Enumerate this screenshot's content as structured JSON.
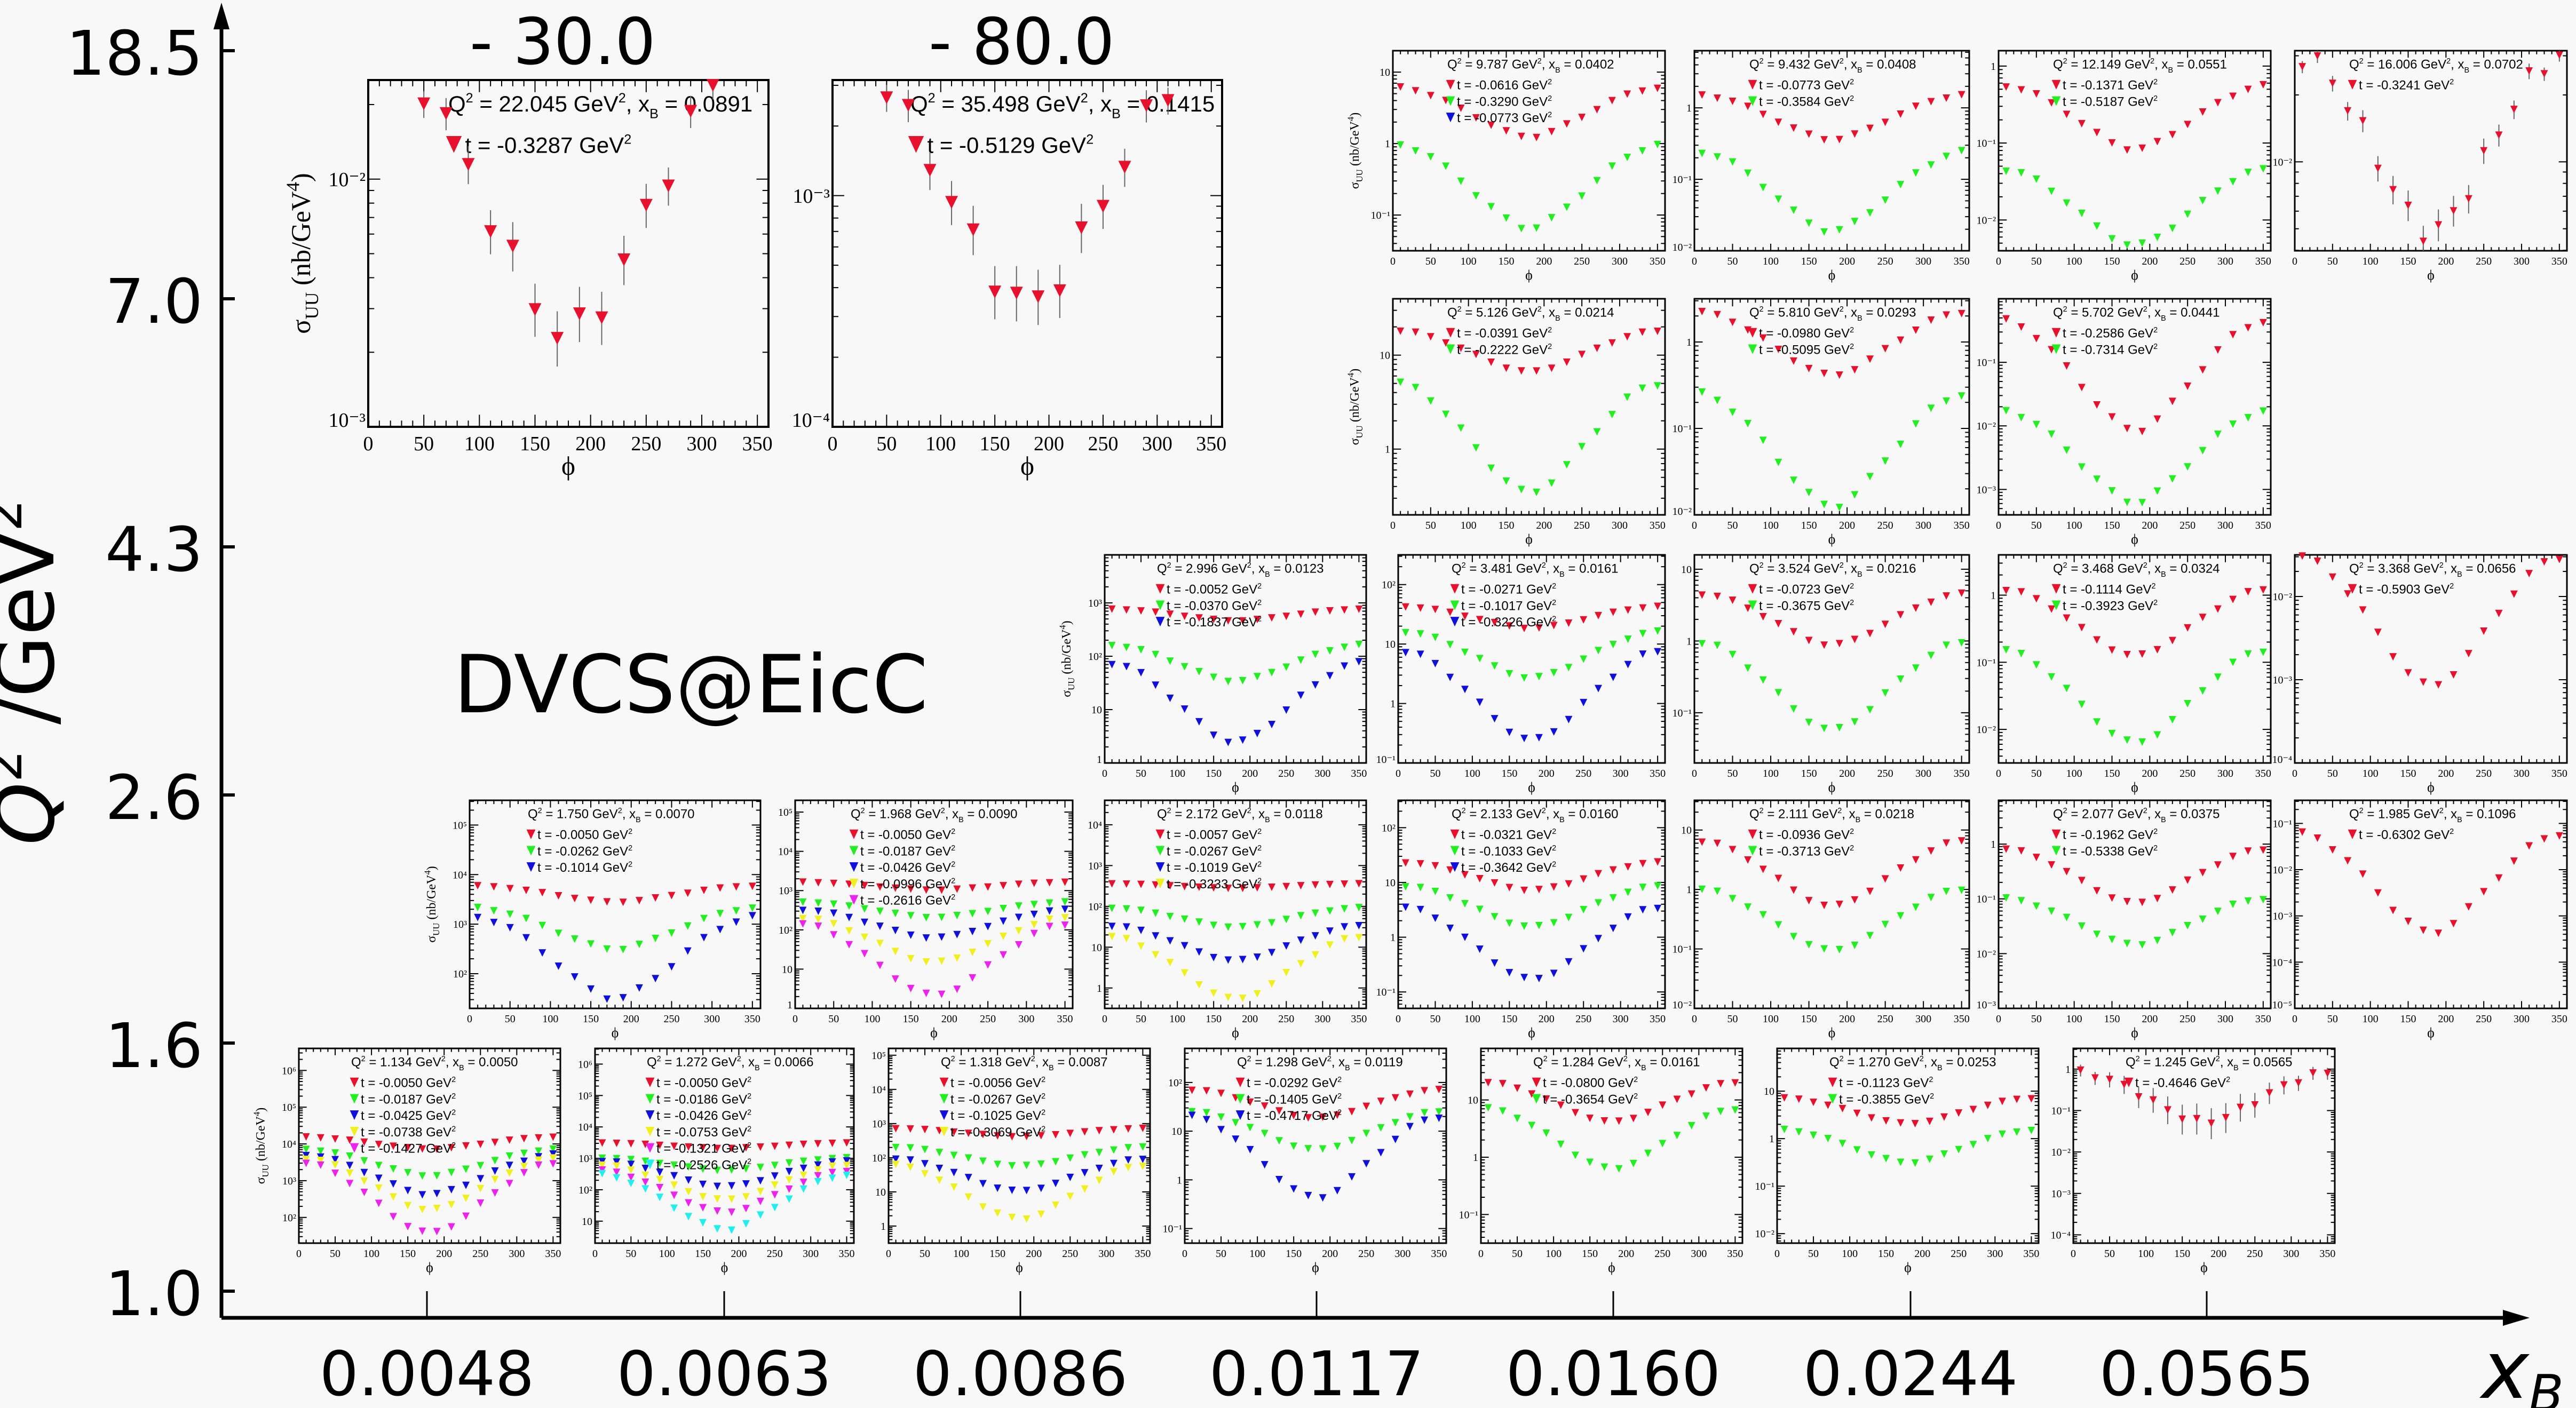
{
  "chart_data": {
    "type": "scatter",
    "title": "DVCS@EicC",
    "xlabel": "x_B",
    "ylabel": "Q^2 / GeV^2",
    "main_axes": {
      "y_bin_edges": [
        "1.0",
        "1.6",
        "2.6",
        "4.3",
        "7.0",
        "18.5"
      ],
      "x_bin_centers": [
        "0.0048",
        "0.0063",
        "0.0086",
        "0.0117",
        "0.0160",
        "0.0244",
        "0.0565"
      ],
      "top_q2_bin_labels": [
        "- 30.0",
        "- 80.0"
      ]
    },
    "panel_axis": {
      "xlabel": "ϕ",
      "ylabel": "σ_UU (nb/GeV^4)",
      "xlim": [
        0,
        360
      ],
      "xticks": [
        0,
        50,
        100,
        150,
        200,
        250,
        300,
        350
      ],
      "yscale": "log"
    },
    "series_colors": {
      "red": "#e8112d",
      "green": "#22ee22",
      "blue": "#1010dd",
      "yellow": "#f0f020",
      "magenta": "#ee22ee",
      "cyan": "#22eeee"
    },
    "panels": [
      {
        "id": "q2-22.045",
        "row": "30.0-80.0",
        "Q2": "22.045",
        "xB": "0.0891",
        "ylim_exp": [
          -3,
          -1.6
        ],
        "ytick_exps": [
          -3,
          -2
        ],
        "series": [
          {
            "t": "-0.3287",
            "color": "red",
            "max": 0.035,
            "min": 0.0023
          }
        ]
      },
      {
        "id": "q2-35.498",
        "row": "30.0-80.0",
        "Q2": "35.498",
        "xB": "0.1415",
        "ylim_exp": [
          -4,
          -2.5
        ],
        "ytick_exps": [
          -4,
          -3
        ],
        "series": [
          {
            "t": "-0.5129",
            "color": "red",
            "max": 0.0042,
            "min": 0.00033
          }
        ]
      },
      {
        "id": "q2-9.787",
        "row": "7.0-18.5",
        "Q2": "9.787",
        "xB": "0.0402",
        "ylim_exp": [
          -1.5,
          1.3
        ],
        "ytick_exps": [
          -1,
          0,
          1
        ],
        "series": [
          {
            "t": "-0.0616",
            "color": "red",
            "max": 6.0,
            "min": 1.2
          },
          {
            "t": "-0.3290",
            "color": "green",
            "max": 0.95,
            "min": 0.063
          },
          {
            "t": "-0.0773",
            "color": "blue",
            "max": null,
            "min": null
          }
        ]
      },
      {
        "id": "q2-9.432",
        "row": "7.0-18.5",
        "Q2": "9.432",
        "xB": "0.0408",
        "ylim_exp": [
          -2,
          0.8
        ],
        "ytick_exps": [
          -2,
          -1,
          0
        ],
        "series": [
          {
            "t": "-0.0773",
            "color": "red",
            "max": 1.5,
            "min": 0.35
          },
          {
            "t": "-0.3584",
            "color": "green",
            "max": 0.24,
            "min": 0.018
          }
        ]
      },
      {
        "id": "q2-12.149",
        "row": "7.0-18.5",
        "Q2": "12.149",
        "xB": "0.0551",
        "ylim_exp": [
          -2.4,
          0.2
        ],
        "ytick_exps": [
          -2,
          -1,
          0
        ],
        "series": [
          {
            "t": "-0.1371",
            "color": "red",
            "max": 0.55,
            "min": 0.08
          },
          {
            "t": "-0.5187",
            "color": "green",
            "max": 0.045,
            "min": 0.0045
          }
        ]
      },
      {
        "id": "q2-16.006",
        "row": "7.0-18.5",
        "Q2": "16.006",
        "xB": "0.0702",
        "ylim_exp": [
          -2.4,
          -1.5
        ],
        "ytick_exps": [
          -2
        ],
        "series": [
          {
            "t": "-0.3241",
            "color": "red",
            "max": 0.03,
            "min": 0.0047
          }
        ]
      },
      {
        "id": "q2-5.126",
        "row": "7.0-18.5",
        "Q2": "5.126",
        "xB": "0.0214",
        "ylim_exp": [
          -0.7,
          1.6
        ],
        "ytick_exps": [
          0,
          1
        ],
        "series": [
          {
            "t": "-0.0391",
            "color": "red",
            "max": 18,
            "min": 6.5
          },
          {
            "t": "-0.2222",
            "color": "green",
            "max": 5.0,
            "min": 0.33
          }
        ]
      },
      {
        "id": "q2-5.810",
        "row": "7.0-18.5",
        "Q2": "5.810",
        "xB": "0.0293",
        "ylim_exp": [
          -2,
          0.5
        ],
        "ytick_exps": [
          -2,
          -1,
          0
        ],
        "series": [
          {
            "t": "-0.0980",
            "color": "red",
            "max": 2.2,
            "min": 0.4
          },
          {
            "t": "-0.5095",
            "color": "green",
            "max": 0.25,
            "min": 0.012
          }
        ]
      },
      {
        "id": "q2-5.702",
        "row": "7.0-18.5",
        "Q2": "5.702",
        "xB": "0.0441",
        "ylim_exp": [
          -3.4,
          0
        ],
        "ytick_exps": [
          -3,
          -2,
          -1
        ],
        "series": [
          {
            "t": "-0.2586",
            "color": "red",
            "max": 0.45,
            "min": 0.008
          },
          {
            "t": "-0.7314",
            "color": "green",
            "max": 0.017,
            "min": 0.0006
          }
        ]
      },
      {
        "id": "q2-2.996",
        "row": "4.3-7.0",
        "Q2": "2.996",
        "xB": "0.0123",
        "ylim_exp": [
          0,
          3.9
        ],
        "ytick_exps": [
          0,
          1,
          2,
          3
        ],
        "series": [
          {
            "t": "-0.0052",
            "color": "red",
            "max": 750,
            "min": 450
          },
          {
            "t": "-0.0370",
            "color": "green",
            "max": 160,
            "min": 33
          },
          {
            "t": "-0.1837",
            "color": "blue",
            "max": 75,
            "min": 2.3
          }
        ]
      },
      {
        "id": "q2-3.481",
        "row": "4.3-7.0",
        "Q2": "3.481",
        "xB": "0.0161",
        "ylim_exp": [
          -1,
          2.5
        ],
        "ytick_exps": [
          -1,
          0,
          1,
          2
        ],
        "series": [
          {
            "t": "-0.0271",
            "color": "red",
            "max": 42,
            "min": 18
          },
          {
            "t": "-0.1017",
            "color": "green",
            "max": 16,
            "min": 2.6
          },
          {
            "t": "-0.3226",
            "color": "blue",
            "max": 7.5,
            "min": 0.23
          }
        ]
      },
      {
        "id": "q2-3.524",
        "row": "4.3-7.0",
        "Q2": "3.524",
        "xB": "0.0216",
        "ylim_exp": [
          -1.7,
          1.2
        ],
        "ytick_exps": [
          -1,
          0,
          1
        ],
        "series": [
          {
            "t": "-0.0723",
            "color": "red",
            "max": 4.5,
            "min": 0.85
          },
          {
            "t": "-0.3675",
            "color": "green",
            "max": 0.95,
            "min": 0.055
          }
        ]
      },
      {
        "id": "q2-3.468",
        "row": "4.3-7.0",
        "Q2": "3.468",
        "xB": "0.0324",
        "ylim_exp": [
          -2.5,
          0.6
        ],
        "ytick_exps": [
          -2,
          -1,
          0
        ],
        "series": [
          {
            "t": "-0.1114",
            "color": "red",
            "max": 1.2,
            "min": 0.12
          },
          {
            "t": "-0.3923",
            "color": "green",
            "max": 0.15,
            "min": 0.006
          }
        ]
      },
      {
        "id": "q2-3.368",
        "row": "4.3-7.0",
        "Q2": "3.368",
        "xB": "0.0656",
        "ylim_exp": [
          -4,
          -1.5
        ],
        "ytick_exps": [
          -4,
          -3,
          -2
        ],
        "series": [
          {
            "t": "-0.5903",
            "color": "red",
            "max": 0.03,
            "min": 0.0008
          }
        ]
      },
      {
        "id": "q2-1.750",
        "row": "2.6-4.3",
        "Q2": "1.750",
        "xB": "0.0070",
        "ylim_exp": [
          1.3,
          5.5
        ],
        "ytick_exps": [
          2,
          3,
          4,
          5
        ],
        "series": [
          {
            "t": "-0.0050",
            "color": "red",
            "max": 5800,
            "min": 2700
          },
          {
            "t": "-0.0262",
            "color": "green",
            "max": 2100,
            "min": 300
          },
          {
            "t": "-0.1014",
            "color": "blue",
            "max": 1400,
            "min": 30
          }
        ]
      },
      {
        "id": "q2-1.968",
        "row": "2.6-4.3",
        "Q2": "1.968",
        "xB": "0.0090",
        "ylim_exp": [
          0,
          5.3
        ],
        "ytick_exps": [
          0,
          1,
          2,
          3,
          4,
          5
        ],
        "series": [
          {
            "t": "-0.0050",
            "color": "red",
            "max": 1600,
            "min": 1000
          },
          {
            "t": "-0.0187",
            "color": "green",
            "max": 500,
            "min": 200
          },
          {
            "t": "-0.0426",
            "color": "blue",
            "max": 320,
            "min": 60
          },
          {
            "t": "-0.0996",
            "color": "yellow",
            "max": 200,
            "min": 14
          },
          {
            "t": "-0.2616",
            "color": "magenta",
            "max": 140,
            "min": 2
          }
        ]
      },
      {
        "id": "q2-2.172",
        "row": "2.6-4.3",
        "Q2": "2.172",
        "xB": "0.0118",
        "ylim_exp": [
          -0.5,
          4.6
        ],
        "ytick_exps": [
          0,
          1,
          2,
          3,
          4
        ],
        "series": [
          {
            "t": "-0.0057",
            "color": "red",
            "max": 350,
            "min": 270
          },
          {
            "t": "-0.0267",
            "color": "green",
            "max": 90,
            "min": 30
          },
          {
            "t": "-0.1019",
            "color": "blue",
            "max": 33,
            "min": 4.5
          },
          {
            "t": "-0.3233",
            "color": "yellow",
            "max": 18,
            "min": 0.5
          }
        ]
      },
      {
        "id": "q2-2.133",
        "row": "2.6-4.3",
        "Q2": "2.133",
        "xB": "0.0160",
        "ylim_exp": [
          -1.3,
          2.5
        ],
        "ytick_exps": [
          -1,
          0,
          1,
          2
        ],
        "series": [
          {
            "t": "-0.0321",
            "color": "red",
            "max": 23,
            "min": 7
          },
          {
            "t": "-0.1033",
            "color": "green",
            "max": 8.5,
            "min": 1.5
          },
          {
            "t": "-0.3642",
            "color": "blue",
            "max": 3.5,
            "min": 0.16
          }
        ]
      },
      {
        "id": "q2-2.111",
        "row": "2.6-4.3",
        "Q2": "2.111",
        "xB": "0.0218",
        "ylim_exp": [
          -2,
          1.5
        ],
        "ytick_exps": [
          -2,
          -1,
          0,
          1
        ],
        "series": [
          {
            "t": "-0.0936",
            "color": "red",
            "max": 6.5,
            "min": 0.5
          },
          {
            "t": "-0.3713",
            "color": "green",
            "max": 1.0,
            "min": 0.09
          }
        ]
      },
      {
        "id": "q2-2.077",
        "row": "2.6-4.3",
        "Q2": "2.077",
        "xB": "0.0375",
        "ylim_exp": [
          -3,
          0.8
        ],
        "ytick_exps": [
          -3,
          -2,
          -1,
          0
        ],
        "series": [
          {
            "t": "-0.1962",
            "color": "red",
            "max": 0.8,
            "min": 0.08
          },
          {
            "t": "-0.5338",
            "color": "green",
            "max": 0.1,
            "min": 0.014
          }
        ]
      },
      {
        "id": "q2-1.985",
        "row": "2.6-4.3",
        "Q2": "1.985",
        "xB": "0.1096",
        "ylim_exp": [
          -5,
          -0.5
        ],
        "ytick_exps": [
          -5,
          -4,
          -3,
          -2,
          -1
        ],
        "series": [
          {
            "t": "-0.6302",
            "color": "red",
            "max": 0.06,
            "min": 0.0004
          }
        ]
      },
      {
        "id": "q2-1.134",
        "row": "1.6-2.6",
        "Q2": "1.134",
        "xB": "0.0050",
        "ylim_exp": [
          1.3,
          6.6
        ],
        "ytick_exps": [
          2,
          3,
          4,
          5,
          6
        ],
        "series": [
          {
            "t": "-0.0050",
            "color": "red",
            "max": 15000,
            "min": 7000
          },
          {
            "t": "-0.0187",
            "color": "green",
            "max": 7000,
            "min": 1300
          },
          {
            "t": "-0.0425",
            "color": "blue",
            "max": 5000,
            "min": 400
          },
          {
            "t": "-0.0738",
            "color": "yellow",
            "max": 4000,
            "min": 150
          },
          {
            "t": "-0.1427",
            "color": "magenta",
            "max": 3000,
            "min": 35
          }
        ]
      },
      {
        "id": "q2-1.272",
        "row": "1.6-2.6",
        "Q2": "1.272",
        "xB": "0.0066",
        "ylim_exp": [
          0.3,
          6.5
        ],
        "ytick_exps": [
          1,
          2,
          3,
          4,
          5,
          6
        ],
        "series": [
          {
            "t": "-0.0050",
            "color": "red",
            "max": 3000,
            "min": 2000
          },
          {
            "t": "-0.0186",
            "color": "green",
            "max": 1000,
            "min": 400
          },
          {
            "t": "-0.0426",
            "color": "blue",
            "max": 800,
            "min": 120
          },
          {
            "t": "-0.0753",
            "color": "yellow",
            "max": 600,
            "min": 45
          },
          {
            "t": "-0.1321",
            "color": "magenta",
            "max": 400,
            "min": 18
          },
          {
            "t": "-0.2526",
            "color": "cyan",
            "max": 300,
            "min": 5
          }
        ]
      },
      {
        "id": "q2-1.318",
        "row": "1.6-2.6",
        "Q2": "1.318",
        "xB": "0.0087",
        "ylim_exp": [
          -0.5,
          5.2
        ],
        "ytick_exps": [
          0,
          1,
          2,
          3,
          4,
          5
        ],
        "series": [
          {
            "t": "-0.0056",
            "color": "red",
            "max": 700,
            "min": 400
          },
          {
            "t": "-0.0267",
            "color": "green",
            "max": 200,
            "min": 55
          },
          {
            "t": "-0.1025",
            "color": "blue",
            "max": 90,
            "min": 10
          },
          {
            "t": "-0.3069",
            "color": "yellow",
            "max": 60,
            "min": 1.5
          }
        ]
      },
      {
        "id": "q2-1.298",
        "row": "1.6-2.6",
        "Q2": "1.298",
        "xB": "0.0119",
        "ylim_exp": [
          -1.3,
          2.7
        ],
        "ytick_exps": [
          -1,
          0,
          1,
          2
        ],
        "series": [
          {
            "t": "-0.0292",
            "color": "red",
            "max": 70,
            "min": 18
          },
          {
            "t": "-0.1405",
            "color": "green",
            "max": 25,
            "min": 4
          },
          {
            "t": "-0.4717",
            "color": "blue",
            "max": 20,
            "min": 0.4
          }
        ]
      },
      {
        "id": "q2-1.284",
        "row": "1.6-2.6",
        "Q2": "1.284",
        "xB": "0.0161",
        "ylim_exp": [
          -1.5,
          1.9
        ],
        "ytick_exps": [
          -1,
          0,
          1
        ],
        "series": [
          {
            "t": "-0.0800",
            "color": "red",
            "max": 20,
            "min": 4
          },
          {
            "t": "-0.3654",
            "color": "green",
            "max": 7,
            "min": 0.6
          }
        ]
      },
      {
        "id": "q2-1.270",
        "row": "1.6-2.6",
        "Q2": "1.270",
        "xB": "0.0253",
        "ylim_exp": [
          -2.2,
          1.9
        ],
        "ytick_exps": [
          -2,
          -1,
          0,
          1
        ],
        "series": [
          {
            "t": "-0.1123",
            "color": "red",
            "max": 7,
            "min": 2
          },
          {
            "t": "-0.3855",
            "color": "green",
            "max": 1.5,
            "min": 0.3
          }
        ]
      },
      {
        "id": "q2-1.245",
        "row": "1.6-2.6",
        "Q2": "1.245",
        "xB": "0.0565",
        "ylim_exp": [
          -4.2,
          0.5
        ],
        "ytick_exps": [
          -4,
          -3,
          -2,
          -1,
          0
        ],
        "series": [
          {
            "t": "-0.4646",
            "color": "red",
            "max": 0.8,
            "min": 0.05
          }
        ]
      }
    ]
  }
}
